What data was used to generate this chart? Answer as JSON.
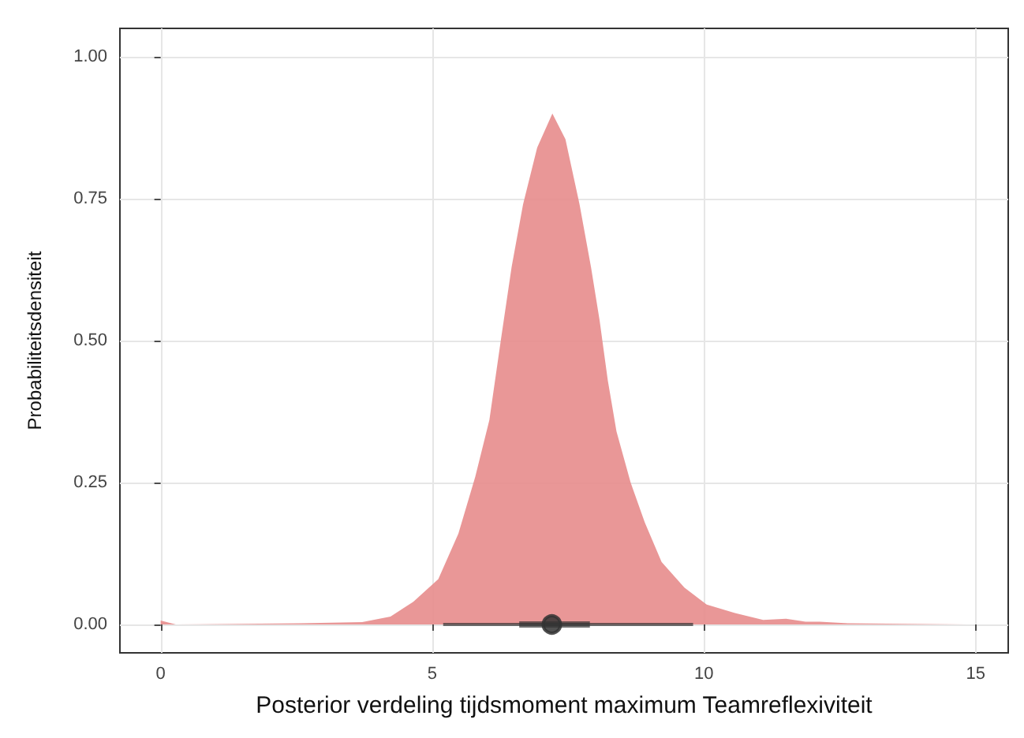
{
  "chart_data": {
    "type": "area",
    "xlabel": "Posterior verdeling tijdsmoment maximum Teamreflexiviteit",
    "ylabel": "Probabiliteitsdensiteit",
    "xlim": [
      -0.75,
      15.6
    ],
    "xticks": [
      0,
      5,
      10,
      15
    ],
    "ylim": [
      -0.05,
      1.05
    ],
    "yticks": [
      {
        "value": 0,
        "label": "0.00"
      },
      {
        "value": 0.25,
        "label": "0.25"
      },
      {
        "value": 0.5,
        "label": "0.50"
      },
      {
        "value": 0.75,
        "label": "0.75"
      },
      {
        "value": 1,
        "label": "1.00"
      }
    ],
    "grid": true,
    "series": [
      {
        "color": "#e78c8c",
        "x": [
          0,
          0.28,
          2.57,
          3.71,
          4.23,
          4.65,
          5.11,
          5.48,
          5.79,
          6.05,
          6.26,
          6.46,
          6.67,
          6.93,
          7.21,
          7.45,
          7.71,
          7.92,
          8.08,
          8.23,
          8.39,
          8.65,
          8.91,
          9.22,
          9.64,
          10.05,
          10.57,
          11.09,
          11.51,
          11.87,
          12.13,
          12.65,
          14.84
        ],
        "values": [
          0.007,
          0,
          0.002,
          0.004,
          0.014,
          0.04,
          0.08,
          0.16,
          0.26,
          0.36,
          0.5,
          0.63,
          0.74,
          0.84,
          0.9,
          0.855,
          0.74,
          0.63,
          0.535,
          0.43,
          0.34,
          0.25,
          0.18,
          0.11,
          0.065,
          0.035,
          0.02,
          0.008,
          0.01,
          0.005,
          0.005,
          0.002,
          0
        ]
      },
      {
        "type": "scatter",
        "color": "#333333",
        "marker": "circle",
        "x": [
          7.2
        ],
        "values": [
          0
        ],
        "xerrors": [
          [
            6.6,
            7.9
          ]
        ]
      },
      {
        "type": "line",
        "color": "#333333",
        "x": [
          5.2,
          9.8
        ],
        "values": [
          0,
          0
        ]
      }
    ]
  }
}
